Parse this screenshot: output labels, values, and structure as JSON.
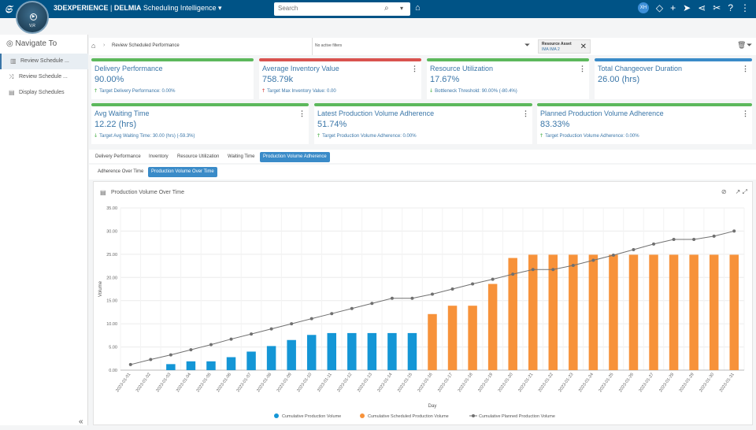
{
  "app": {
    "brand": "3DEXPERIENCE",
    "separator": " | ",
    "product": "DELMIA",
    "module": "Scheduling Intelligence",
    "compass_version": "V,R",
    "search_placeholder": "Search",
    "avatar_initials": "XH"
  },
  "sidebar": {
    "title": "Navigate To",
    "items": [
      {
        "label": "Review Schedule ...",
        "icon": "chart-icon",
        "active": true
      },
      {
        "label": "Review Schedule ...",
        "icon": "shuffle-icon",
        "active": false
      },
      {
        "label": "Display Schedules",
        "icon": "document-icon",
        "active": false
      }
    ],
    "collapse": "«"
  },
  "filterbar": {
    "breadcrumb": "Review Scheduled Performance",
    "no_filters": "No active filters",
    "chip_title": "Resource Asset",
    "chip_value": "IMA IMA 2"
  },
  "kpis": [
    {
      "title": "Delivery Performance",
      "value": "90.00%",
      "target": "Target Delivery Performance: 0.00%",
      "arrow": "up",
      "bar_color": "#5cb85c",
      "arrow_color": "#5cb85c"
    },
    {
      "title": "Average Inventory Value",
      "value": "758.79k",
      "target": "Target Max Inventory Value: 0.00",
      "arrow": "up",
      "bar_color": "#d9534f",
      "arrow_color": "#d9534f"
    },
    {
      "title": "Resource Utilization",
      "value": "17.67%",
      "target": "Bottleneck Threshold: 90.00% (-80.4%)",
      "arrow": "down",
      "bar_color": "#5cb85c",
      "arrow_color": "#5cb85c"
    },
    {
      "title": "Total Changeover Duration",
      "value": "26.00 (hrs)",
      "target": "",
      "arrow": "",
      "bar_color": "#3a8bc8",
      "arrow_color": "#5cb85c"
    },
    {
      "title": "Avg Waiting Time",
      "value": "12.22 (hrs)",
      "target": "Target Avg Waiting Time: 30.00 (hrs) (-59.3%)",
      "arrow": "down",
      "bar_color": "#5cb85c",
      "arrow_color": "#5cb85c"
    },
    {
      "title": "Latest Production Volume Adherence",
      "value": "51.74%",
      "target": "Target Production Volume Adherence: 0.00%",
      "arrow": "up",
      "bar_color": "#5cb85c",
      "arrow_color": "#5cb85c"
    },
    {
      "title": "Planned Production Volume Adherence",
      "value": "83.33%",
      "target": "Target Production Volume Adherence: 0.00%",
      "arrow": "up",
      "bar_color": "#5cb85c",
      "arrow_color": "#5cb85c"
    }
  ],
  "tabs": [
    "Delivery Performance",
    "Inventory",
    "Resource Utilization",
    "Waiting Time",
    "Production Volume Adherence"
  ],
  "active_tab": "Production Volume Adherence",
  "subtabs": [
    "Adherence Over Time",
    "Production Volume Over Time"
  ],
  "active_subtab": "Production Volume Over Time",
  "chart_data": {
    "type": "bar",
    "title": "Production Volume Over Time",
    "xlabel": "Day",
    "ylabel": "Volume",
    "ylim": [
      0,
      35
    ],
    "yticks": [
      "0.00",
      "5.00",
      "10.00",
      "15.00",
      "20.00",
      "25.00",
      "30.00",
      "35.00"
    ],
    "categories": [
      "2023-01-01",
      "2023-01-02",
      "2023-01-03",
      "2023-01-04",
      "2023-01-05",
      "2023-01-06",
      "2023-01-07",
      "2023-01-08",
      "2023-01-09",
      "2023-01-10",
      "2023-01-11",
      "2023-01-12",
      "2023-01-13",
      "2023-01-14",
      "2023-01-15",
      "2023-01-16",
      "2023-01-17",
      "2023-01-18",
      "2023-01-19",
      "2023-01-20",
      "2023-01-21",
      "2023-01-22",
      "2023-01-23",
      "2023-01-24",
      "2023-01-25",
      "2023-01-26",
      "2023-01-27",
      "2023-01-28",
      "2023-01-29",
      "2023-01-30",
      "2023-01-31"
    ],
    "series": [
      {
        "name": "Cumulative Production Volume",
        "type": "bar",
        "color": "#1496d6",
        "values": [
          0,
          0,
          1.3,
          1.9,
          1.9,
          2.8,
          4.0,
          5.2,
          6.5,
          7.6,
          8.0,
          8.0,
          8.0,
          8.0,
          8.0,
          null,
          null,
          null,
          null,
          null,
          null,
          null,
          null,
          null,
          null,
          null,
          null,
          null,
          null,
          null,
          null
        ]
      },
      {
        "name": "Cumulative Scheduled Production Volume",
        "type": "bar",
        "color": "#f7923a",
        "values": [
          null,
          null,
          null,
          null,
          null,
          null,
          null,
          null,
          null,
          null,
          null,
          null,
          null,
          null,
          null,
          12.1,
          13.9,
          13.9,
          18.6,
          24.2,
          24.9,
          24.9,
          24.9,
          24.9,
          24.9,
          24.9,
          24.9,
          24.9,
          24.9,
          24.9,
          24.9
        ]
      },
      {
        "name": "Cumulative Planned Production Volume",
        "type": "line",
        "color": "#707070",
        "values": [
          1.2,
          2.3,
          3.3,
          4.4,
          5.5,
          6.7,
          7.8,
          8.9,
          10.0,
          11.1,
          12.2,
          13.3,
          14.4,
          15.5,
          15.5,
          16.4,
          17.5,
          18.6,
          19.6,
          20.7,
          21.7,
          21.7,
          22.6,
          23.7,
          24.8,
          26.0,
          27.2,
          28.2,
          28.2,
          28.9,
          30.0
        ]
      }
    ],
    "legend_position": "bottom"
  }
}
